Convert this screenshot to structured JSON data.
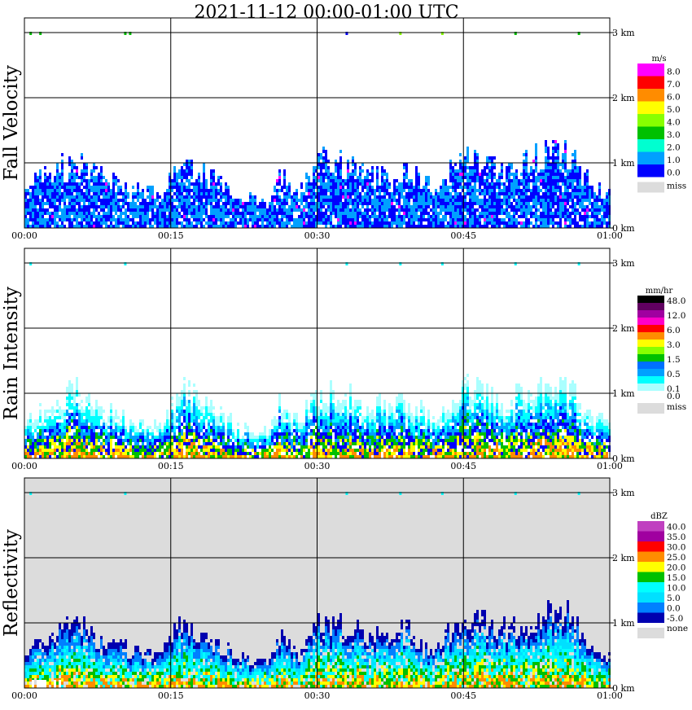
{
  "title": "2021-11-12   00:00-01:00 UTC",
  "colors": {
    "background": "#ffffff",
    "missing_gray": "#dcdcdc",
    "grid": "#000000"
  },
  "chart_data": [
    {
      "type": "heatmap",
      "panel_label": "Fall Velocity",
      "x_ticks": [
        "00:00",
        "00:15",
        "00:30",
        "00:45",
        "01:00"
      ],
      "y_ticks": [
        "0 km",
        "1 km",
        "2 km",
        "3 km"
      ],
      "ylim": [
        0,
        3
      ],
      "legend_unit": "m/s",
      "legend_bins": [
        {
          "label": "8.0",
          "color": "#ff00ff"
        },
        {
          "label": "7.0",
          "color": "#ff0000"
        },
        {
          "label": "6.0",
          "color": "#ff8c00"
        },
        {
          "label": "5.0",
          "color": "#ffff00"
        },
        {
          "label": "4.0",
          "color": "#88ff00"
        },
        {
          "label": "3.0",
          "color": "#00c000"
        },
        {
          "label": "2.0",
          "color": "#00ffd0"
        },
        {
          "label": "1.0",
          "color": "#00a0ff"
        },
        {
          "label": "0.0",
          "color": "#0000ff"
        }
      ],
      "legend_missing": "miss",
      "data_palette": [
        "#0000ff",
        "#0000ff",
        "#00a0ff",
        "#00a0ff",
        "#0000ff",
        "#ff00ff"
      ],
      "background_missing": false,
      "top_markers": [
        {
          "time_min": 0.6,
          "color": "#00c000"
        },
        {
          "time_min": 1.6,
          "color": "#00c000"
        },
        {
          "time_min": 10.3,
          "color": "#00c000"
        },
        {
          "time_min": 10.8,
          "color": "#00c000"
        },
        {
          "time_min": 33.0,
          "color": "#0000ff"
        },
        {
          "time_min": 38.5,
          "color": "#88ff00"
        },
        {
          "time_min": 42.8,
          "color": "#88ff00"
        },
        {
          "time_min": 50.3,
          "color": "#00c000"
        },
        {
          "time_min": 56.8,
          "color": "#00c000"
        }
      ]
    },
    {
      "type": "heatmap",
      "panel_label": "Rain Intensity",
      "x_ticks": [
        "00:00",
        "00:15",
        "00:30",
        "00:45",
        "01:00"
      ],
      "y_ticks": [
        "0 km",
        "1 km",
        "2 km",
        "3 km"
      ],
      "ylim": [
        0,
        3
      ],
      "legend_unit": "mm/hr",
      "legend_bins": [
        {
          "label": "48.0",
          "color": "#000000"
        },
        {
          "label": "",
          "color": "#600060"
        },
        {
          "label": "12.0",
          "color": "#a000a0"
        },
        {
          "label": "",
          "color": "#ff00c8"
        },
        {
          "label": "6.0",
          "color": "#ff0000"
        },
        {
          "label": "",
          "color": "#ff8c00"
        },
        {
          "label": "3.0",
          "color": "#ffff00"
        },
        {
          "label": "",
          "color": "#88ff00"
        },
        {
          "label": "1.5",
          "color": "#00c000"
        },
        {
          "label": "",
          "color": "#0070ff"
        },
        {
          "label": "0.5",
          "color": "#00a0ff"
        },
        {
          "label": "",
          "color": "#00ffff"
        },
        {
          "label": "0.1",
          "color": "#aaffff"
        },
        {
          "label": "0.0",
          "color": "#ffffff"
        }
      ],
      "legend_missing": "miss",
      "data_palette": [
        "#aaffff",
        "#00ffff",
        "#00a0ff",
        "#0000ff",
        "#00c000",
        "#ffff00",
        "#ff8c00"
      ],
      "background_missing": false,
      "top_markers": [
        {
          "time_min": 0.6,
          "color": "#00ffff"
        },
        {
          "time_min": 10.3,
          "color": "#00ffff"
        },
        {
          "time_min": 33.0,
          "color": "#00ffff"
        },
        {
          "time_min": 38.5,
          "color": "#00ffff"
        },
        {
          "time_min": 42.8,
          "color": "#00ffff"
        },
        {
          "time_min": 50.3,
          "color": "#00ffff"
        },
        {
          "time_min": 56.8,
          "color": "#00ffff"
        }
      ]
    },
    {
      "type": "heatmap",
      "panel_label": "Reflectivity",
      "x_ticks": [
        "00:00",
        "00:15",
        "00:30",
        "00:45",
        "01:00"
      ],
      "y_ticks": [
        "0 km",
        "1 km",
        "2 km",
        "3 km"
      ],
      "ylim": [
        0,
        3
      ],
      "legend_unit": "dBZ",
      "legend_bins": [
        {
          "label": "40.0",
          "color": "#c040c0"
        },
        {
          "label": "35.0",
          "color": "#a000a0"
        },
        {
          "label": "30.0",
          "color": "#ff0000"
        },
        {
          "label": "25.0",
          "color": "#ff8c00"
        },
        {
          "label": "20.0",
          "color": "#ffff00"
        },
        {
          "label": "15.0",
          "color": "#00c000"
        },
        {
          "label": "10.0",
          "color": "#00ffff"
        },
        {
          "label": "5.0",
          "color": "#00e0ff"
        },
        {
          "label": "0.0",
          "color": "#0080ff"
        },
        {
          "label": "-5.0",
          "color": "#0000b0"
        }
      ],
      "legend_missing": "none",
      "data_palette": [
        "#0000b0",
        "#0080ff",
        "#00e0ff",
        "#00ffff",
        "#00c000",
        "#ffff00",
        "#ff8c00"
      ],
      "background_missing": true,
      "top_markers": [
        {
          "time_min": 0.6,
          "color": "#00ffff"
        },
        {
          "time_min": 10.3,
          "color": "#00ffff"
        },
        {
          "time_min": 33.0,
          "color": "#00ffff"
        },
        {
          "time_min": 38.5,
          "color": "#00ffff"
        },
        {
          "time_min": 42.8,
          "color": "#00ffff"
        },
        {
          "time_min": 50.3,
          "color": "#00ffff"
        },
        {
          "time_min": 56.8,
          "color": "#00ffff"
        }
      ]
    }
  ],
  "precip_profile": [
    {
      "t": 0,
      "top_km": 0.6
    },
    {
      "t": 2,
      "top_km": 0.85
    },
    {
      "t": 5,
      "top_km": 1.1
    },
    {
      "t": 8,
      "top_km": 0.8
    },
    {
      "t": 11,
      "top_km": 0.6
    },
    {
      "t": 14,
      "top_km": 0.55
    },
    {
      "t": 16,
      "top_km": 1.15
    },
    {
      "t": 19,
      "top_km": 0.8
    },
    {
      "t": 22,
      "top_km": 0.5
    },
    {
      "t": 25,
      "top_km": 0.45
    },
    {
      "t": 26,
      "top_km": 0.9
    },
    {
      "t": 28,
      "top_km": 0.55
    },
    {
      "t": 30,
      "top_km": 1.1
    },
    {
      "t": 33,
      "top_km": 1.0
    },
    {
      "t": 36,
      "top_km": 0.85
    },
    {
      "t": 39,
      "top_km": 0.95
    },
    {
      "t": 42,
      "top_km": 0.6
    },
    {
      "t": 45,
      "top_km": 1.2
    },
    {
      "t": 48,
      "top_km": 0.95
    },
    {
      "t": 51,
      "top_km": 1.0
    },
    {
      "t": 55,
      "top_km": 1.3
    },
    {
      "t": 58,
      "top_km": 0.7
    },
    {
      "t": 60,
      "top_km": 0.5
    }
  ]
}
